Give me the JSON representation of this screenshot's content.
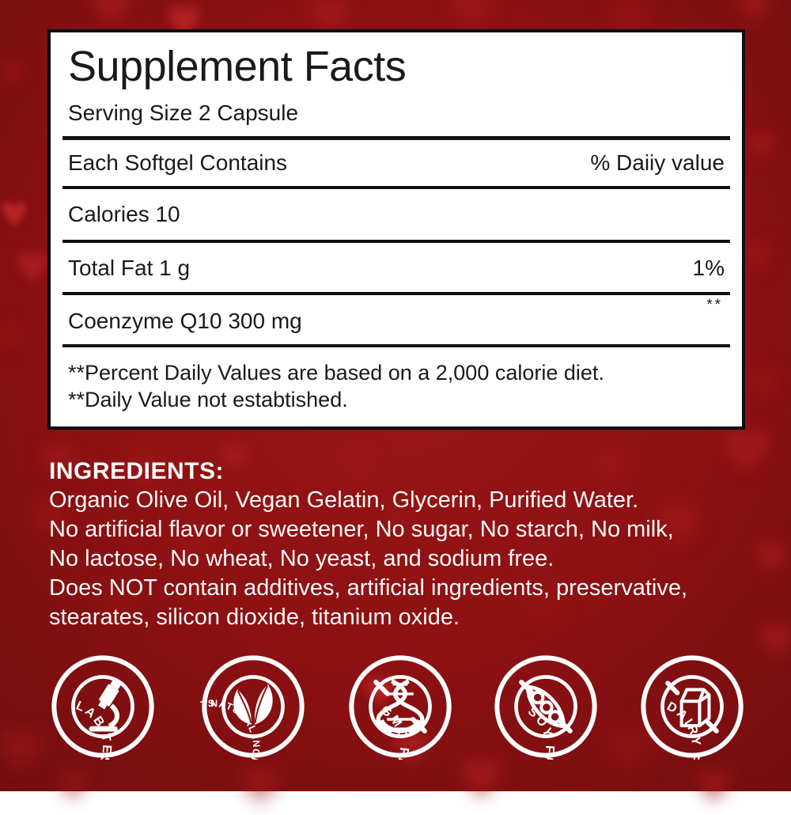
{
  "label_panel": {
    "title": "Supplement Facts",
    "serving_size": "Serving Size 2 Capsule",
    "columns": {
      "left": "Each Softgel Contains",
      "right": "% Daiiy value"
    },
    "rows": [
      {
        "name": "Calories 10",
        "value": ""
      },
      {
        "name": "Total Fat 1 g",
        "value": "1%"
      },
      {
        "name": "Coenzyme Q10 300 mg",
        "value": "",
        "marker": "**"
      }
    ],
    "footnotes": [
      "**Percent Daily Values are based on a 2,000 calorie diet.",
      "**Daily Value not estabtished."
    ]
  },
  "ingredients": {
    "heading": "INGREDIENTS:",
    "lines": [
      "Organic Olive Oil, Vegan Gelatin, Glycerin, Purified Water.",
      "No artificial flavor or sweetener, No sugar, No starch, No milk,",
      "No lactose, No wheat, No yeast, and sodium free.",
      "Does NOT contain additives, artificial ingredients, preservative,",
      "stearates, silicon dioxide, titanium oxide."
    ]
  },
  "badges": [
    {
      "label": "LAB TESTED",
      "icon": "microscope-icon",
      "crossed": false
    },
    {
      "label": "NATURAL INGREDIENTS",
      "icon": "leaf-icon",
      "crossed": false
    },
    {
      "label": "GMO FREE",
      "icon": "dna-icon",
      "crossed": true
    },
    {
      "label": "SOY FREE",
      "icon": "soybean-icon",
      "crossed": true
    },
    {
      "label": "DAIRY FREE",
      "icon": "milk-carton-icon",
      "crossed": true
    }
  ],
  "colors": {
    "background_red": "#8c1113",
    "heart_red": "#b01f1f",
    "panel_background": "#ffffff",
    "panel_border": "#0f0f0f",
    "text_dark": "#1a1a1a",
    "text_light": "#ffffff"
  }
}
